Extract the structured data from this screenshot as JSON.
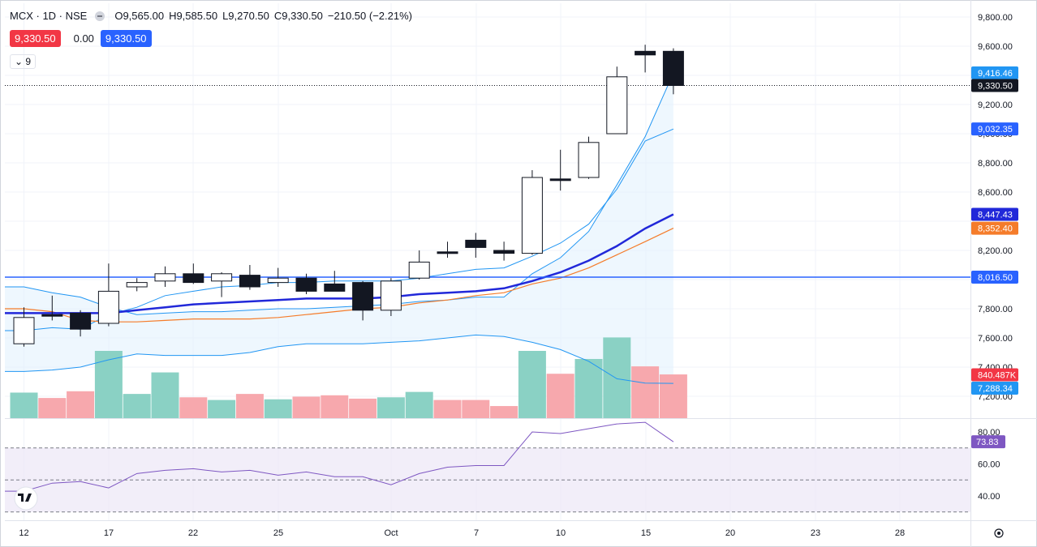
{
  "header": {
    "symbol": "MCX · 1D · NSE",
    "open": "O9,565.00",
    "high": "H9,585.50",
    "low": "L9,270.50",
    "close": "C9,330.50",
    "change": "−210.50 (−2.21%)",
    "sell_price": "9,330.50",
    "spread": "0.00",
    "buy_price": "9,330.50",
    "indicator_count": "9"
  },
  "colors": {
    "up_fill": "#ffffff",
    "down_fill": "#131722",
    "candle_border": "#131722",
    "vol_up": "#8ad1c4",
    "vol_down": "#f7a8ad",
    "bb": "#2196f3",
    "bb_fill": "#e3f2fd",
    "ma_blue": "#2128d9",
    "ma_orange": "#f57c2a",
    "rsi": "#7e57c2",
    "rsi_fill": "#ede7f6",
    "hline": "#2962ff"
  },
  "chart_data": {
    "type": "candlestick",
    "price_axis": {
      "min": 7200,
      "max": 9800,
      "ticks": [
        "9,800.00",
        "9,600.00",
        "9,200.00",
        "9,000.00",
        "8,800.00",
        "8,600.00",
        "8,200.00",
        "7,800.00",
        "7,600.00",
        "7,400.00",
        "7,200.00"
      ],
      "tick_values": [
        9800,
        9600,
        9200,
        9000,
        8800,
        8600,
        8200,
        7800,
        7600,
        7400,
        7200
      ]
    },
    "x_labels": [
      "12",
      "17",
      "22",
      "25",
      "Oct",
      "7",
      "10",
      "15",
      "20",
      "23",
      "28"
    ],
    "candles": [
      {
        "o": 7560,
        "h": 7810,
        "l": 7540,
        "c": 7740
      },
      {
        "o": 7760,
        "h": 7890,
        "l": 7720,
        "c": 7750
      },
      {
        "o": 7770,
        "h": 7790,
        "l": 7610,
        "c": 7660
      },
      {
        "o": 7700,
        "h": 8110,
        "l": 7680,
        "c": 7920
      },
      {
        "o": 7950,
        "h": 8010,
        "l": 7920,
        "c": 7980
      },
      {
        "o": 7990,
        "h": 8090,
        "l": 7950,
        "c": 8040
      },
      {
        "o": 8040,
        "h": 8110,
        "l": 7970,
        "c": 7980
      },
      {
        "o": 7990,
        "h": 8050,
        "l": 7880,
        "c": 8040
      },
      {
        "o": 8030,
        "h": 8100,
        "l": 7930,
        "c": 7950
      },
      {
        "o": 7980,
        "h": 8080,
        "l": 7950,
        "c": 8010
      },
      {
        "o": 8010,
        "h": 8040,
        "l": 7900,
        "c": 7920
      },
      {
        "o": 7970,
        "h": 8060,
        "l": 7920,
        "c": 7920
      },
      {
        "o": 7980,
        "h": 7990,
        "l": 7720,
        "c": 7790
      },
      {
        "o": 7790,
        "h": 8010,
        "l": 7750,
        "c": 7990
      },
      {
        "o": 8010,
        "h": 8200,
        "l": 8000,
        "c": 8120
      },
      {
        "o": 8190,
        "h": 8260,
        "l": 8150,
        "c": 8180
      },
      {
        "o": 8270,
        "h": 8320,
        "l": 8150,
        "c": 8220
      },
      {
        "o": 8200,
        "h": 8260,
        "l": 8130,
        "c": 8180
      },
      {
        "o": 8180,
        "h": 8750,
        "l": 8170,
        "c": 8700
      },
      {
        "o": 8690,
        "h": 8890,
        "l": 8610,
        "c": 8680
      },
      {
        "o": 8700,
        "h": 8980,
        "l": 8690,
        "c": 8940
      },
      {
        "o": 9000,
        "h": 9460,
        "l": 9000,
        "c": 9390
      },
      {
        "o": 9565,
        "h": 9610,
        "l": 9420,
        "c": 9540
      },
      {
        "o": 9565,
        "h": 9585.5,
        "l": 9270.5,
        "c": 9330.5
      }
    ],
    "bb_upper": [
      7950,
      7910,
      7880,
      7810,
      7760,
      7770,
      7780,
      7780,
      7790,
      7800,
      7800,
      7810,
      7820,
      7830,
      7850,
      7860,
      7880,
      7880,
      8040,
      8150,
      8330,
      8650,
      8980,
      9416.46
    ],
    "bb_mid": [
      7650,
      7670,
      7660,
      7760,
      7810,
      7890,
      7920,
      7950,
      7960,
      7980,
      7980,
      7990,
      7990,
      7990,
      8010,
      8040,
      8070,
      8080,
      8160,
      8250,
      8380,
      8620,
      8950,
      9032.35
    ],
    "bb_lower": [
      7370,
      7380,
      7400,
      7450,
      7490,
      7480,
      7480,
      7480,
      7500,
      7540,
      7560,
      7560,
      7560,
      7570,
      7580,
      7600,
      7620,
      7610,
      7570,
      7520,
      7440,
      7320,
      7290,
      7288.34
    ],
    "ma_blue": [
      7770,
      7770,
      7770,
      7770,
      7790,
      7810,
      7830,
      7840,
      7850,
      7860,
      7870,
      7870,
      7870,
      7880,
      7900,
      7910,
      7920,
      7940,
      7990,
      8050,
      8130,
      8230,
      8350,
      8447.43
    ],
    "ma_orange": [
      7800,
      7780,
      7720,
      7710,
      7710,
      7720,
      7730,
      7730,
      7730,
      7740,
      7760,
      7780,
      7800,
      7810,
      7840,
      7860,
      7890,
      7910,
      7970,
      8010,
      8080,
      8170,
      8260,
      8352.4
    ],
    "hline": 8016.5,
    "last_price": 9330.5,
    "tags": {
      "bb_upper": "9,416.46",
      "last": "9,330.50",
      "bb_mid": "9,032.35",
      "ma_blue": "8,447.43",
      "ma_orange": "8,352.40",
      "hline": "8,016.50",
      "volume": "840.487K",
      "bb_lower": "7,288.34"
    },
    "volume": {
      "values": [
        0.38,
        0.3,
        0.4,
        1.0,
        0.36,
        0.68,
        0.31,
        0.27,
        0.36,
        0.28,
        0.32,
        0.34,
        0.29,
        0.31,
        0.39,
        0.27,
        0.27,
        0.18,
        1.0,
        0.66,
        0.88,
        1.2,
        0.77,
        0.65
      ],
      "up": [
        true,
        false,
        false,
        true,
        true,
        true,
        false,
        true,
        false,
        true,
        false,
        false,
        false,
        true,
        true,
        false,
        false,
        false,
        true,
        false,
        true,
        true,
        false,
        false
      ]
    },
    "rsi": {
      "values": [
        43,
        48,
        49,
        45,
        54,
        56,
        57,
        55,
        56,
        53,
        55,
        52,
        52,
        47,
        54,
        58,
        59,
        59,
        80,
        79,
        82,
        85,
        86,
        73.83
      ],
      "axis_ticks": [
        "80.00",
        "60.00",
        "40.00"
      ],
      "tick_values": [
        80,
        60,
        40
      ],
      "tag": "73.83"
    }
  }
}
